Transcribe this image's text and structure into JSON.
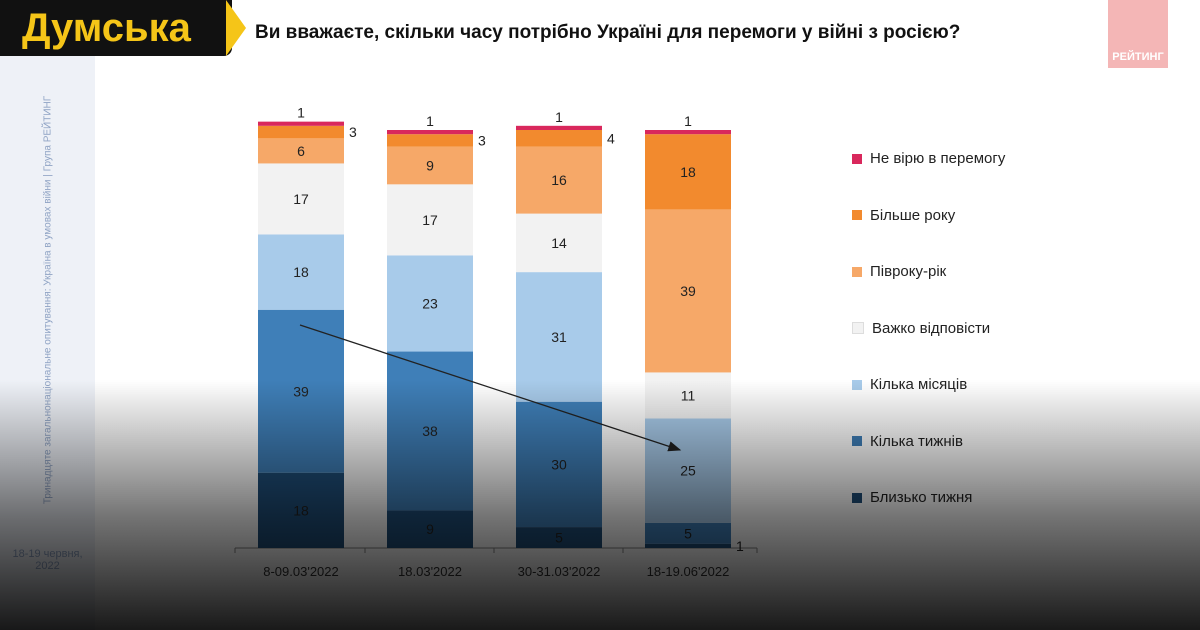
{
  "logo": "Думська",
  "brand": "РЕЙТИНГ",
  "sidebar": {
    "text": "Тринадцяте загальнонаціональне опитування: Україна в умовах війни | Група РЕЙТИНГ",
    "date": "18-19 червня, 2022"
  },
  "chart_data": {
    "type": "bar",
    "stacked": true,
    "title": "Ви вважаєте, скільки часу потрібно Україні для перемоги у війні з росією?",
    "categories": [
      "8-09.03'2022",
      "18.03'2022",
      "30-31.03'2022",
      "18-19.06'2022"
    ],
    "series": [
      {
        "name": "Близько тижня",
        "color": "#1f4e79",
        "values": [
          18,
          9,
          5,
          1
        ]
      },
      {
        "name": "Кілька тижнів",
        "color": "#3f7fb8",
        "values": [
          39,
          38,
          30,
          5
        ]
      },
      {
        "name": "Кілька місяців",
        "color": "#a8cbea",
        "values": [
          18,
          23,
          31,
          25
        ]
      },
      {
        "name": "Важко відповісти",
        "color": "#f2f2f2",
        "values": [
          17,
          17,
          14,
          11
        ]
      },
      {
        "name": "Півроку-рік",
        "color": "#f6a868",
        "values": [
          6,
          9,
          16,
          39
        ]
      },
      {
        "name": "Більше року",
        "color": "#f28a2e",
        "values": [
          3,
          3,
          4,
          18
        ]
      },
      {
        "name": "Не вірю в перемогу",
        "color": "#d9285c",
        "values": [
          1,
          1,
          1,
          1
        ]
      }
    ],
    "legend_order": [
      6,
      5,
      4,
      3,
      2,
      1,
      0
    ],
    "legend": "right",
    "annotation": "arrow"
  }
}
